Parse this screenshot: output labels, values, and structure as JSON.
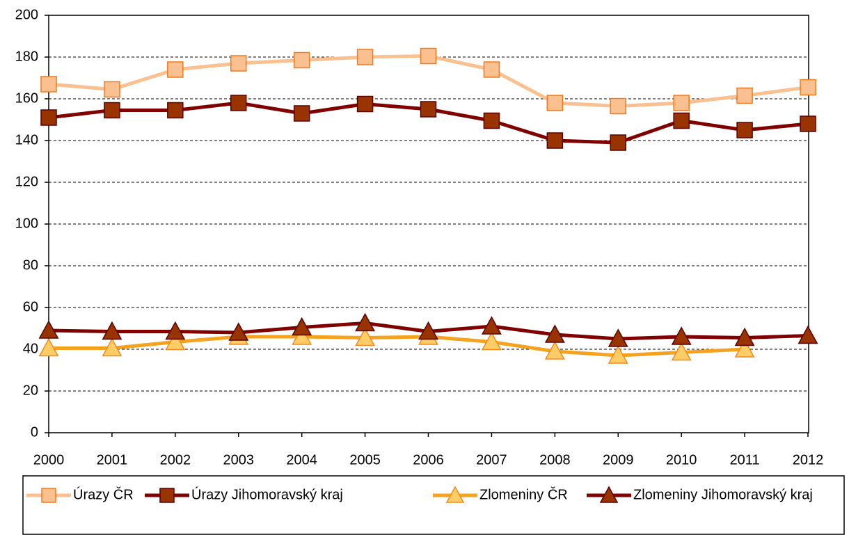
{
  "chart_data": {
    "type": "line",
    "x": [
      "2000",
      "2001",
      "2002",
      "2003",
      "2004",
      "2005",
      "2006",
      "2007",
      "2008",
      "2009",
      "2010",
      "2011",
      "2012"
    ],
    "series": [
      {
        "name": "Úrazy ČR",
        "color": "#FAC090",
        "marker": "square",
        "marker_fill": "#FAC090",
        "marker_edge": "#F07A1E",
        "values": [
          167,
          164.5,
          174,
          177,
          178.5,
          180,
          180.5,
          174,
          158,
          156.5,
          158,
          161.5,
          165.5
        ]
      },
      {
        "name": "Úrazy Jihomoravský kraj",
        "color": "#800000",
        "marker": "square",
        "marker_fill": "#993300",
        "marker_edge": "#5A0000",
        "values": [
          151,
          154.5,
          154.5,
          158,
          153,
          157.5,
          155,
          149.5,
          140,
          139,
          149.5,
          145,
          148
        ]
      },
      {
        "name": "Zlomeniny ČR",
        "color": "#F5A21E",
        "marker": "triangle",
        "marker_fill": "#FFCC66",
        "marker_edge": "#F08A1E",
        "values": [
          40.5,
          40.5,
          43.5,
          46,
          46,
          45.5,
          46,
          43.5,
          39,
          37,
          38.5,
          40,
          null
        ]
      },
      {
        "name": "Zlomeniny Jihomoravský kraj",
        "color": "#800000",
        "marker": "triangle",
        "marker_fill": "#993300",
        "marker_edge": "#5A0000",
        "values": [
          49,
          48.5,
          48.5,
          48,
          50.5,
          52.5,
          48.5,
          51,
          47,
          45,
          46,
          45.5,
          46.5
        ]
      }
    ],
    "ylim": [
      0,
      200
    ],
    "yticks": [
      0,
      20,
      40,
      60,
      80,
      100,
      120,
      140,
      160,
      180,
      200
    ],
    "grid": true,
    "legend": "bottom"
  }
}
